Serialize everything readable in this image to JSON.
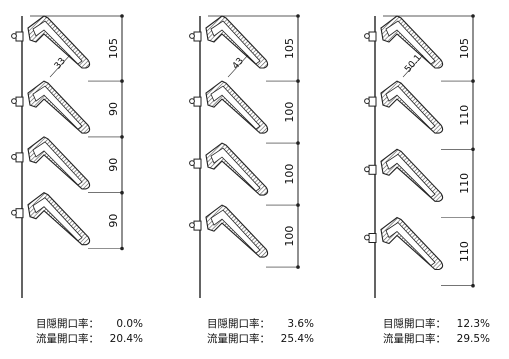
{
  "colors": {
    "line": "#222222",
    "hatch": "#555555",
    "fill": "#ffffff",
    "bg": "#ffffff"
  },
  "sections": [
    {
      "id": "a",
      "gap_label": "33",
      "spacings": [
        "105",
        "90",
        "90",
        "90"
      ],
      "caption": {
        "view_label": "目隠開口率：",
        "view_value": "0.0%",
        "flow_label": "流量開口率：",
        "flow_value": "20.4%"
      }
    },
    {
      "id": "b",
      "gap_label": "43",
      "spacings": [
        "105",
        "100",
        "100",
        "100"
      ],
      "caption": {
        "view_label": "目隠開口率：",
        "view_value": "3.6%",
        "flow_label": "流量開口率：",
        "flow_value": "25.4%"
      }
    },
    {
      "id": "c",
      "gap_label": "50.1",
      "spacings": [
        "105",
        "110",
        "110",
        "110"
      ],
      "caption": {
        "view_label": "目隠開口率：",
        "view_value": "12.3%",
        "flow_label": "流量開口率：",
        "flow_value": "29.5%"
      }
    }
  ]
}
